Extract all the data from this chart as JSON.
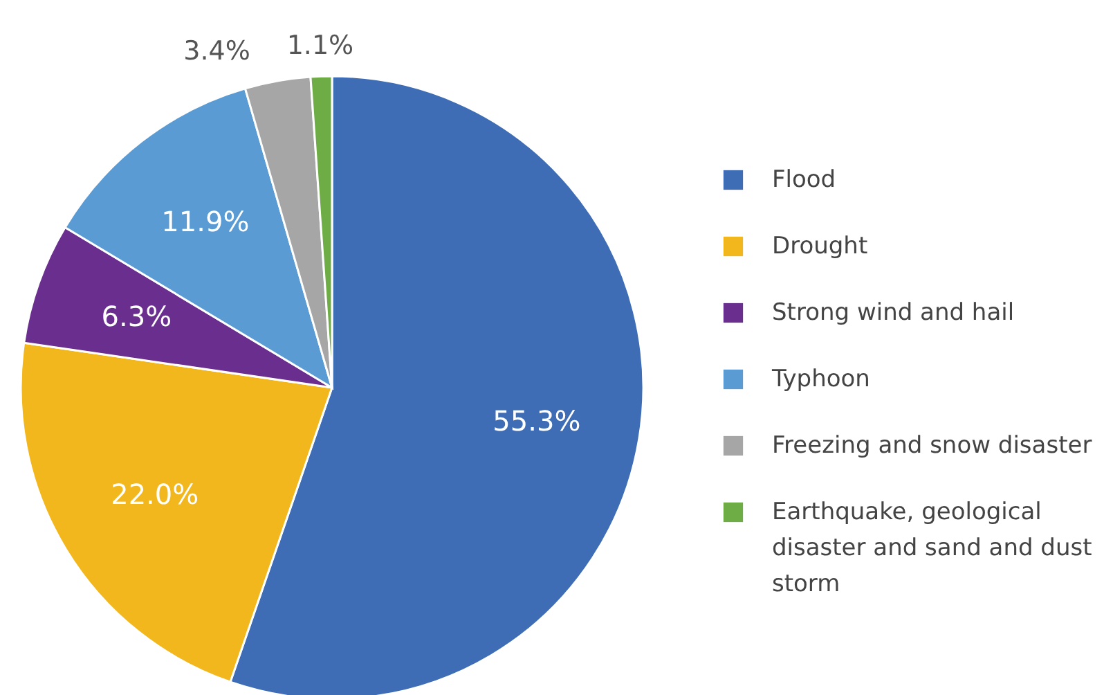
{
  "chart_data": {
    "type": "pie",
    "categories": [
      "Flood",
      "Drought",
      "Strong wind and hail",
      "Typhoon",
      "Freezing and snow disaster",
      "Earthquake, geological disaster and sand and dust storm"
    ],
    "values": [
      55.3,
      22.0,
      6.3,
      11.9,
      3.4,
      1.1
    ],
    "colors": [
      "#3e6db5",
      "#f2b71c",
      "#6a2e8f",
      "#5a9bd4",
      "#a6a6a6",
      "#6eac46"
    ],
    "value_labels": [
      "55.3%",
      "22.0%",
      "6.3%",
      "11.9%",
      "3.4%",
      "1.1%"
    ],
    "legend": "right"
  }
}
